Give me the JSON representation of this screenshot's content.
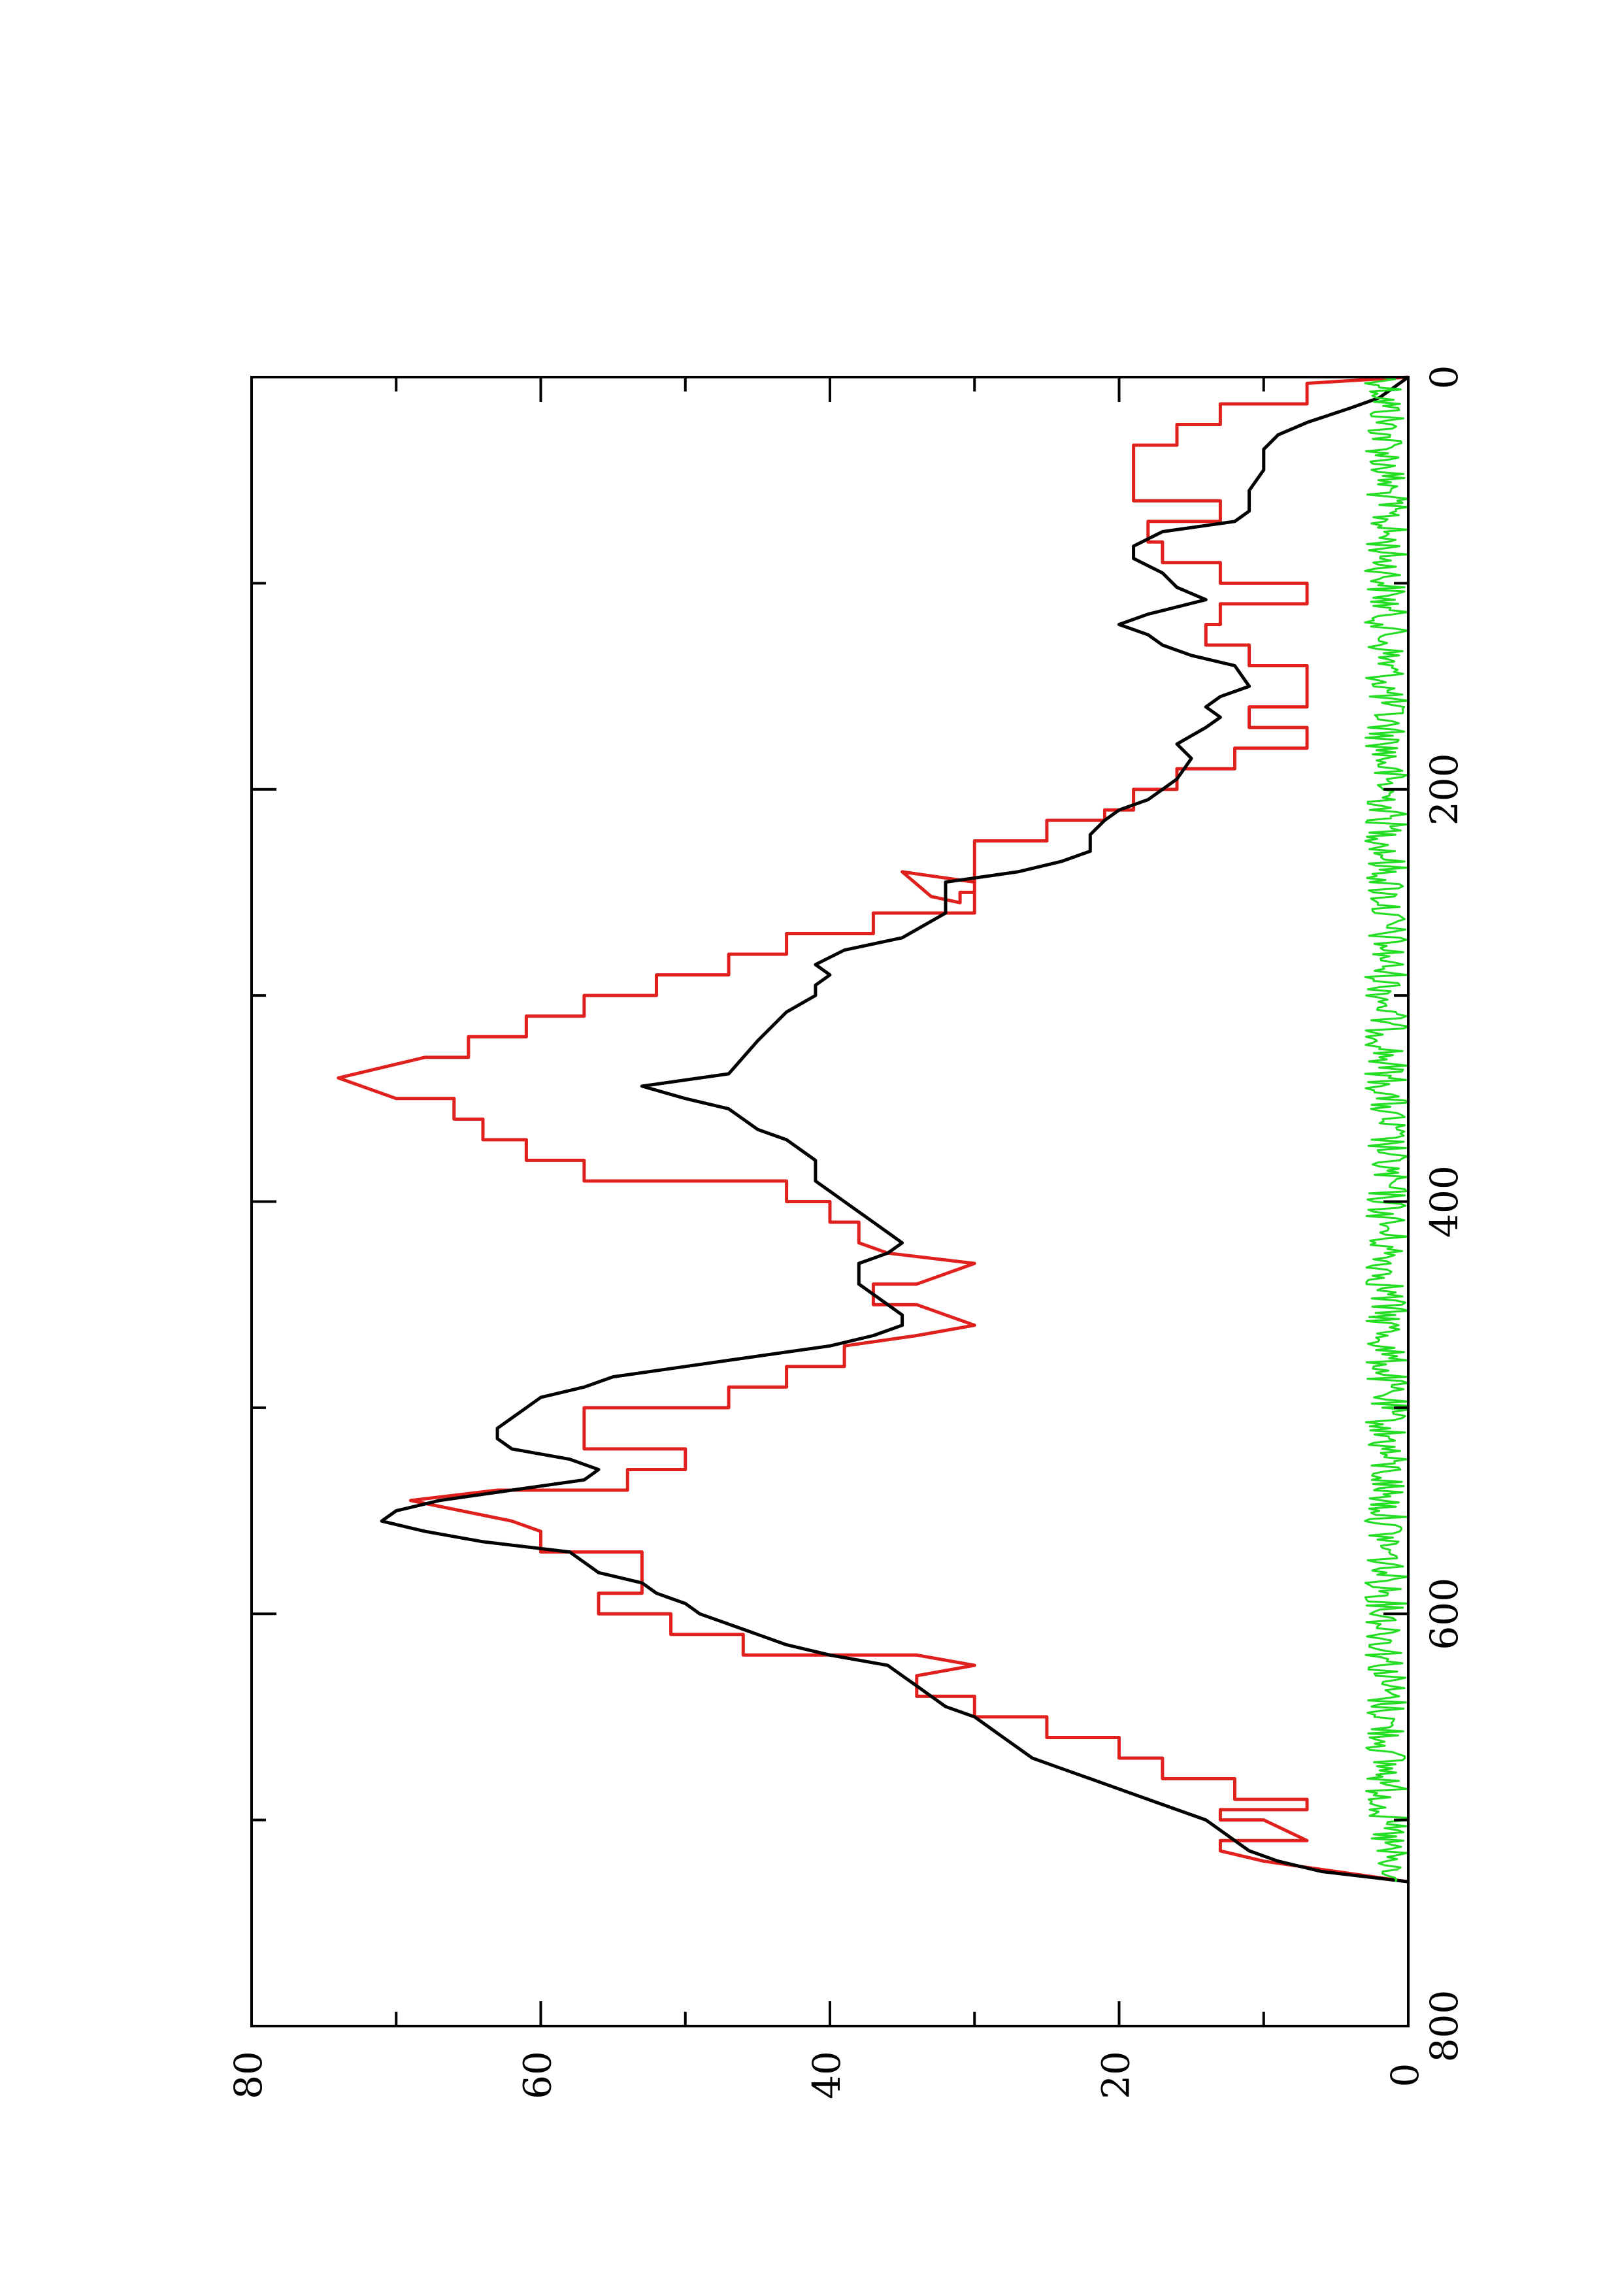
{
  "chart_data": {
    "type": "line",
    "orientation": "rotated-90-clockwise",
    "title": "",
    "xlabel": "",
    "ylabel": "",
    "xlim": [
      0,
      800
    ],
    "ylim": [
      0,
      80
    ],
    "x_ticks": [
      0,
      200,
      400,
      600,
      800
    ],
    "x_tick_labels": [
      "0",
      "200",
      "400",
      "600",
      "800"
    ],
    "y_ticks": [
      0,
      20,
      40,
      60,
      80
    ],
    "y_tick_labels": [
      "0",
      "20",
      "40",
      "60",
      "80"
    ],
    "grid": false,
    "legend": "none",
    "series": [
      {
        "color": "#e0201c",
        "style": "step",
        "points": [
          [
            0,
            0
          ],
          [
            3,
            7
          ],
          [
            13,
            7
          ],
          [
            13,
            13
          ],
          [
            23,
            13
          ],
          [
            23,
            16
          ],
          [
            33,
            16
          ],
          [
            33,
            19
          ],
          [
            50,
            19
          ],
          [
            50,
            19
          ],
          [
            60,
            19
          ],
          [
            60,
            13
          ],
          [
            70,
            13
          ],
          [
            70,
            18
          ],
          [
            80,
            18
          ],
          [
            80,
            17
          ],
          [
            90,
            17
          ],
          [
            90,
            13
          ],
          [
            100,
            13
          ],
          [
            100,
            7
          ],
          [
            110,
            7
          ],
          [
            110,
            13
          ],
          [
            120,
            13
          ],
          [
            120,
            14
          ],
          [
            130,
            14
          ],
          [
            130,
            11
          ],
          [
            140,
            11
          ],
          [
            140,
            7
          ],
          [
            160,
            7
          ],
          [
            160,
            11
          ],
          [
            170,
            11
          ],
          [
            170,
            7
          ],
          [
            180,
            7
          ],
          [
            180,
            12
          ],
          [
            190,
            12
          ],
          [
            190,
            16
          ],
          [
            200,
            16
          ],
          [
            200,
            19
          ],
          [
            210,
            19
          ],
          [
            210,
            21
          ],
          [
            215,
            21
          ],
          [
            215,
            25
          ],
          [
            225,
            25
          ],
          [
            225,
            30
          ],
          [
            250,
            30
          ],
          [
            250,
            31
          ],
          [
            255,
            31
          ],
          [
            252,
            33
          ],
          [
            240,
            35
          ],
          [
            245,
            30
          ],
          [
            260,
            30
          ],
          [
            260,
            37
          ],
          [
            270,
            37
          ],
          [
            270,
            43
          ],
          [
            280,
            43
          ],
          [
            280,
            47
          ],
          [
            290,
            47
          ],
          [
            290,
            52
          ],
          [
            300,
            52
          ],
          [
            300,
            57
          ],
          [
            310,
            57
          ],
          [
            310,
            61
          ],
          [
            320,
            61
          ],
          [
            320,
            65
          ],
          [
            330,
            65
          ],
          [
            330,
            68
          ],
          [
            340,
            74
          ],
          [
            350,
            70
          ],
          [
            350,
            66
          ],
          [
            360,
            66
          ],
          [
            360,
            64
          ],
          [
            370,
            64
          ],
          [
            370,
            61
          ],
          [
            380,
            61
          ],
          [
            380,
            57
          ],
          [
            390,
            57
          ],
          [
            390,
            43
          ],
          [
            400,
            43
          ],
          [
            400,
            40
          ],
          [
            410,
            40
          ],
          [
            410,
            38
          ],
          [
            420,
            38
          ],
          [
            425,
            36
          ],
          [
            430,
            30
          ],
          [
            440,
            34
          ],
          [
            440,
            37
          ],
          [
            450,
            37
          ],
          [
            450,
            34
          ],
          [
            460,
            30
          ],
          [
            465,
            34
          ],
          [
            470,
            39
          ],
          [
            480,
            39
          ],
          [
            480,
            43
          ],
          [
            490,
            43
          ],
          [
            490,
            47
          ],
          [
            500,
            47
          ],
          [
            500,
            57
          ],
          [
            520,
            57
          ],
          [
            520,
            50
          ],
          [
            530,
            50
          ],
          [
            530,
            54
          ],
          [
            540,
            54
          ],
          [
            540,
            63
          ],
          [
            545,
            69
          ],
          [
            555,
            62
          ],
          [
            560,
            60
          ],
          [
            570,
            60
          ],
          [
            570,
            53
          ],
          [
            590,
            53
          ],
          [
            590,
            56
          ],
          [
            600,
            56
          ],
          [
            600,
            51
          ],
          [
            610,
            51
          ],
          [
            610,
            46
          ],
          [
            620,
            46
          ],
          [
            620,
            34
          ],
          [
            625,
            30
          ],
          [
            630,
            34
          ],
          [
            640,
            34
          ],
          [
            640,
            30
          ],
          [
            650,
            30
          ],
          [
            650,
            25
          ],
          [
            660,
            25
          ],
          [
            660,
            20
          ],
          [
            670,
            20
          ],
          [
            670,
            17
          ],
          [
            680,
            17
          ],
          [
            680,
            12
          ],
          [
            690,
            12
          ],
          [
            690,
            7
          ],
          [
            695,
            7
          ],
          [
            695,
            13
          ],
          [
            700,
            13
          ],
          [
            700,
            10
          ],
          [
            710,
            7
          ],
          [
            710,
            13
          ],
          [
            715,
            13
          ],
          [
            720,
            10
          ],
          [
            725,
            5
          ],
          [
            730,
            0
          ]
        ]
      },
      {
        "color": "#000000",
        "style": "line",
        "points": [
          [
            0,
            0
          ],
          [
            10,
            2
          ],
          [
            15,
            4
          ],
          [
            22,
            7
          ],
          [
            28,
            9
          ],
          [
            35,
            10
          ],
          [
            45,
            10
          ],
          [
            55,
            11
          ],
          [
            65,
            11
          ],
          [
            70,
            12
          ],
          [
            75,
            17
          ],
          [
            82,
            19
          ],
          [
            88,
            19
          ],
          [
            95,
            17
          ],
          [
            102,
            16
          ],
          [
            108,
            14
          ],
          [
            115,
            18
          ],
          [
            120,
            20
          ],
          [
            125,
            18
          ],
          [
            130,
            17
          ],
          [
            135,
            15
          ],
          [
            140,
            12
          ],
          [
            150,
            11
          ],
          [
            155,
            13
          ],
          [
            160,
            14
          ],
          [
            165,
            13
          ],
          [
            170,
            14
          ],
          [
            178,
            16
          ],
          [
            185,
            15
          ],
          [
            195,
            16
          ],
          [
            205,
            18
          ],
          [
            210,
            20
          ],
          [
            215,
            21
          ],
          [
            222,
            22
          ],
          [
            230,
            22
          ],
          [
            235,
            24
          ],
          [
            240,
            27
          ],
          [
            245,
            32
          ],
          [
            250,
            32
          ],
          [
            255,
            32
          ],
          [
            260,
            32
          ],
          [
            268,
            34
          ],
          [
            272,
            35
          ],
          [
            278,
            39
          ],
          [
            285,
            41
          ],
          [
            290,
            40
          ],
          [
            295,
            41
          ],
          [
            300,
            41
          ],
          [
            308,
            43
          ],
          [
            315,
            44
          ],
          [
            322,
            45
          ],
          [
            330,
            46
          ],
          [
            338,
            47
          ],
          [
            344,
            53
          ],
          [
            350,
            50
          ],
          [
            355,
            47
          ],
          [
            360,
            46
          ],
          [
            365,
            45
          ],
          [
            370,
            43
          ],
          [
            375,
            42
          ],
          [
            380,
            41
          ],
          [
            385,
            41
          ],
          [
            390,
            41
          ],
          [
            395,
            40
          ],
          [
            400,
            39
          ],
          [
            405,
            38
          ],
          [
            410,
            37
          ],
          [
            415,
            36
          ],
          [
            420,
            35
          ],
          [
            425,
            36
          ],
          [
            430,
            38
          ],
          [
            435,
            38
          ],
          [
            440,
            38
          ],
          [
            445,
            37
          ],
          [
            450,
            36
          ],
          [
            455,
            35
          ],
          [
            460,
            35
          ],
          [
            465,
            37
          ],
          [
            470,
            40
          ],
          [
            475,
            45
          ],
          [
            480,
            50
          ],
          [
            485,
            55
          ],
          [
            490,
            57
          ],
          [
            495,
            60
          ],
          [
            500,
            61
          ],
          [
            505,
            62
          ],
          [
            510,
            63
          ],
          [
            515,
            63
          ],
          [
            520,
            62
          ],
          [
            525,
            58
          ],
          [
            530,
            56
          ],
          [
            535,
            57
          ],
          [
            540,
            62
          ],
          [
            545,
            67
          ],
          [
            550,
            70
          ],
          [
            555,
            71
          ],
          [
            560,
            68
          ],
          [
            565,
            64
          ],
          [
            570,
            58
          ],
          [
            575,
            57
          ],
          [
            580,
            56
          ],
          [
            585,
            53
          ],
          [
            590,
            52
          ],
          [
            595,
            50
          ],
          [
            600,
            49
          ],
          [
            605,
            47
          ],
          [
            610,
            45
          ],
          [
            615,
            43
          ],
          [
            620,
            40
          ],
          [
            625,
            36
          ],
          [
            630,
            35
          ],
          [
            635,
            34
          ],
          [
            640,
            33
          ],
          [
            645,
            32
          ],
          [
            650,
            30
          ],
          [
            655,
            29
          ],
          [
            660,
            28
          ],
          [
            665,
            27
          ],
          [
            670,
            26
          ],
          [
            675,
            24
          ],
          [
            680,
            22
          ],
          [
            685,
            20
          ],
          [
            690,
            18
          ],
          [
            695,
            16
          ],
          [
            700,
            14
          ],
          [
            705,
            13
          ],
          [
            710,
            12
          ],
          [
            715,
            11
          ],
          [
            720,
            9
          ],
          [
            725,
            6
          ],
          [
            730,
            0
          ]
        ]
      },
      {
        "color": "#22dd22",
        "style": "noise",
        "x_range": [
          0,
          730
        ],
        "y_range": [
          0,
          3
        ]
      }
    ]
  }
}
